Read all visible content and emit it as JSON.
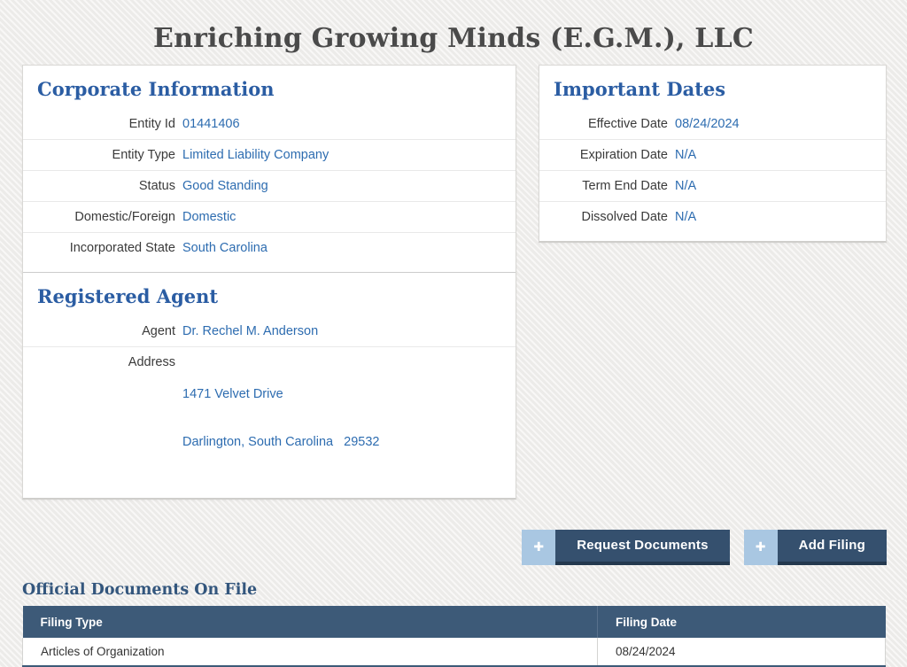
{
  "page": {
    "title": "Enriching Growing Minds (E.G.M.), LLC"
  },
  "corporate_information": {
    "heading": "Corporate Information",
    "rows": [
      {
        "label": "Entity Id",
        "value": "01441406"
      },
      {
        "label": "Entity Type",
        "value": "Limited Liability Company"
      },
      {
        "label": "Status",
        "value": "Good Standing"
      },
      {
        "label": "Domestic/Foreign",
        "value": "Domestic"
      },
      {
        "label": "Incorporated State",
        "value": "South Carolina"
      }
    ]
  },
  "registered_agent": {
    "heading": "Registered Agent",
    "agent_label": "Agent",
    "agent_value": "Dr. Rechel M. Anderson",
    "address_label": "Address",
    "address_lines": [
      "1471 Velvet Drive",
      "Darlington, South Carolina   29532"
    ]
  },
  "important_dates": {
    "heading": "Important Dates",
    "rows": [
      {
        "label": "Effective Date",
        "value": "08/24/2024"
      },
      {
        "label": "Expiration Date",
        "value": "N/A"
      },
      {
        "label": "Term End Date",
        "value": "N/A"
      },
      {
        "label": "Dissolved Date",
        "value": "N/A"
      }
    ]
  },
  "actions": {
    "plus_glyph": "✚",
    "request_documents": {
      "label": "Request Documents",
      "icon": "plus-icon"
    },
    "add_filing": {
      "label": "Add Filing",
      "icon": "plus-icon"
    }
  },
  "documents": {
    "heading": "Official Documents On File",
    "columns": [
      "Filing Type",
      "Filing Date"
    ],
    "rows": [
      [
        "Articles of Organization",
        "08/24/2024"
      ]
    ]
  },
  "colors": {
    "page_background": "#efeeec",
    "panel_heading_blue": "#2b5da3",
    "value_link_blue": "#2d6cb0",
    "button_dark_navy": "#35506e",
    "button_light_blue": "#a9c7e2",
    "table_header_slate": "#3d5a78",
    "title_gray": "#4a4a4a"
  }
}
